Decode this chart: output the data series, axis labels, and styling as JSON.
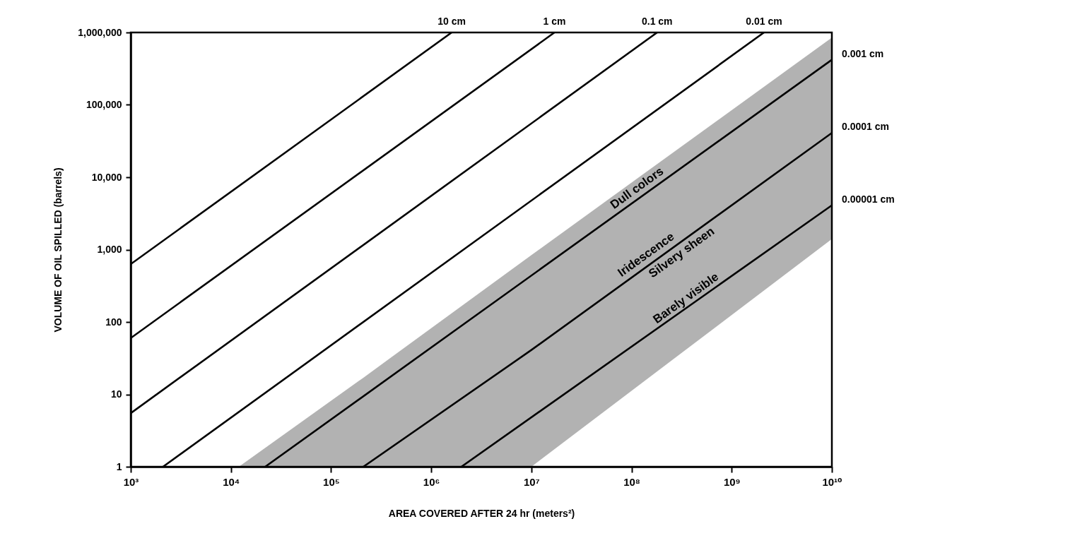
{
  "chart_data": {
    "type": "line",
    "xlabel": "AREA COVERED AFTER 24 hr (meters²)",
    "ylabel": "VOLUME OF OIL SPILLED (barrels)",
    "log": "xy",
    "grid": false,
    "xlim": [
      1000,
      10000000000
    ],
    "ylim": [
      1,
      1000000
    ],
    "xticks": [
      {
        "value": 1000,
        "label": "10³"
      },
      {
        "value": 10000,
        "label": "10⁴"
      },
      {
        "value": 100000,
        "label": "10⁵"
      },
      {
        "value": 1000000,
        "label": "10⁶"
      },
      {
        "value": 10000000,
        "label": "10⁷"
      },
      {
        "value": 100000000,
        "label": "10⁸"
      },
      {
        "value": 1000000000,
        "label": "10⁹"
      },
      {
        "value": 10000000000,
        "label": "10¹⁰"
      }
    ],
    "yticks": [
      1,
      10,
      {
        "value": 100,
        "label": "100"
      },
      {
        "value": 1000,
        "label": "1,000"
      },
      {
        "value": 10000,
        "label": "10,000"
      },
      {
        "value": 100000,
        "label": "100,000"
      },
      {
        "value": 1000000,
        "label": "1,000,000"
      }
    ],
    "series": [
      {
        "name": "10 cm",
        "color": "#000000",
        "x": [
          1000,
          1600000
        ],
        "values": [
          630,
          1000000
        ]
      },
      {
        "name": "1 cm",
        "color": "#000000",
        "x": [
          1000,
          17000000
        ],
        "values": [
          60,
          1000000
        ]
      },
      {
        "name": "0.1 cm",
        "color": "#000000",
        "x": [
          1000,
          180000000
        ],
        "values": [
          5.5,
          1000000
        ]
      },
      {
        "name": "0.01 cm",
        "color": "#000000",
        "x": [
          2100,
          2100000000
        ],
        "values": [
          1,
          1000000
        ]
      },
      {
        "name": "0.001 cm",
        "color": "#000000",
        "x": [
          22000,
          10000000000
        ],
        "values": [
          1,
          420000
        ]
      },
      {
        "name": "0.0001 cm",
        "color": "#000000",
        "x": [
          12000,
          210000,
          10000000,
          10000000000
        ],
        "values": [
          null,
          1,
          41,
          41000
        ],
        "lower": [
          1,
          1,
          1,
          1400
        ],
        "upper": [
          1,
          17,
          840,
          850000
        ]
      },
      {
        "name": "0.00001 cm",
        "color": "#000000",
        "x": [
          2000000,
          10000000000
        ],
        "values": [
          1,
          4100
        ]
      }
    ],
    "annotations": [
      {
        "text": "Dull colors",
        "x": 130000000,
        "y": 5460
      },
      {
        "text": "Iridescence",
        "x": 160000000,
        "y": 656
      },
      {
        "text": "Silvery sheen",
        "x": 280000000,
        "y": 1148
      },
      {
        "text": "Barely visible",
        "x": 400000000,
        "y": 164
      }
    ]
  }
}
